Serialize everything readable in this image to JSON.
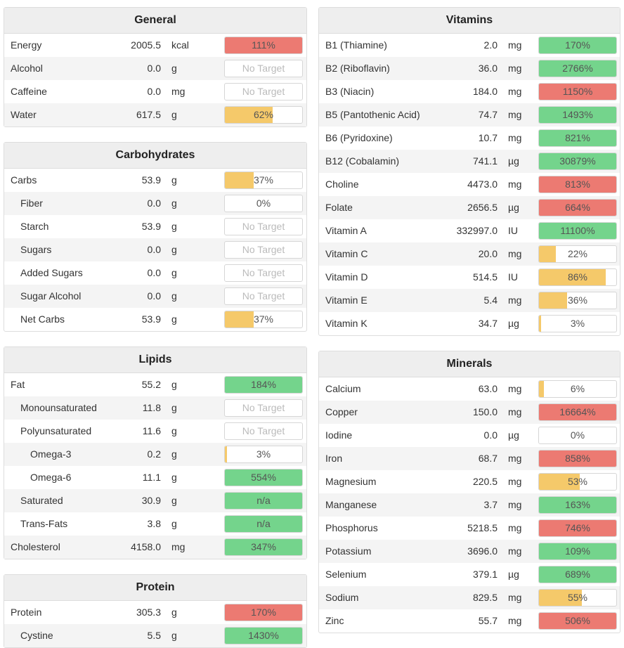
{
  "columns": [
    [
      {
        "title": "General",
        "rows": [
          {
            "name": "Energy",
            "amount": "2005.5",
            "unit": "kcal",
            "bar": {
              "value": 111,
              "label": "111%",
              "color": "#ec7a72"
            }
          },
          {
            "name": "Alcohol",
            "amount": "0.0",
            "unit": "g",
            "bar": {
              "label": "No Target"
            }
          },
          {
            "name": "Caffeine",
            "amount": "0.0",
            "unit": "mg",
            "bar": {
              "label": "No Target"
            }
          },
          {
            "name": "Water",
            "amount": "617.5",
            "unit": "g",
            "bar": {
              "value": 62,
              "label": "62%",
              "color": "#f5c96a"
            }
          }
        ]
      },
      {
        "title": "Carbohydrates",
        "rows": [
          {
            "name": "Carbs",
            "amount": "53.9",
            "unit": "g",
            "bar": {
              "value": 37,
              "label": "37%",
              "color": "#f5c96a"
            },
            "children": [
              {
                "name": "Fiber",
                "amount": "0.0",
                "unit": "g",
                "bar": {
                  "value": 0,
                  "label": "0%"
                }
              },
              {
                "name": "Starch",
                "amount": "53.9",
                "unit": "g",
                "bar": {
                  "label": "No Target"
                }
              },
              {
                "name": "Sugars",
                "amount": "0.0",
                "unit": "g",
                "bar": {
                  "label": "No Target"
                }
              },
              {
                "name": "Added Sugars",
                "amount": "0.0",
                "unit": "g",
                "bar": {
                  "label": "No Target"
                }
              },
              {
                "name": "Sugar Alcohol",
                "amount": "0.0",
                "unit": "g",
                "bar": {
                  "label": "No Target"
                }
              },
              {
                "name": "Net Carbs",
                "amount": "53.9",
                "unit": "g",
                "bar": {
                  "value": 37,
                  "label": "37%",
                  "color": "#f5c96a"
                }
              }
            ]
          }
        ]
      },
      {
        "title": "Lipids",
        "rows": [
          {
            "name": "Fat",
            "amount": "55.2",
            "unit": "g",
            "bar": {
              "value": 184,
              "label": "184%",
              "color": "#74d48c"
            },
            "children": [
              {
                "name": "Monounsaturated",
                "amount": "11.8",
                "unit": "g",
                "bar": {
                  "label": "No Target"
                }
              },
              {
                "name": "Polyunsaturated",
                "amount": "11.6",
                "unit": "g",
                "bar": {
                  "label": "No Target"
                },
                "children": [
                  {
                    "name": "Omega-3",
                    "amount": "0.2",
                    "unit": "g",
                    "bar": {
                      "value": 3,
                      "label": "3%",
                      "color": "#f5c96a"
                    }
                  },
                  {
                    "name": "Omega-6",
                    "amount": "11.1",
                    "unit": "g",
                    "bar": {
                      "value": 554,
                      "label": "554%",
                      "color": "#74d48c"
                    }
                  }
                ]
              },
              {
                "name": "Saturated",
                "amount": "30.9",
                "unit": "g",
                "bar": {
                  "label": "n/a",
                  "color": "#74d48c"
                }
              },
              {
                "name": "Trans-Fats",
                "amount": "3.8",
                "unit": "g",
                "bar": {
                  "label": "n/a",
                  "color": "#74d48c"
                }
              }
            ]
          },
          {
            "name": "Cholesterol",
            "amount": "4158.0",
            "unit": "mg",
            "bar": {
              "value": 347,
              "label": "347%",
              "color": "#74d48c"
            }
          }
        ]
      },
      {
        "title": "Protein",
        "rows": [
          {
            "name": "Protein",
            "amount": "305.3",
            "unit": "g",
            "bar": {
              "value": 170,
              "label": "170%",
              "color": "#ec7a72"
            },
            "children": [
              {
                "name": "Cystine",
                "amount": "5.5",
                "unit": "g",
                "bar": {
                  "value": 1430,
                  "label": "1430%",
                  "color": "#74d48c"
                }
              }
            ]
          }
        ]
      }
    ],
    [
      {
        "title": "Vitamins",
        "rows": [
          {
            "name": "B1 (Thiamine)",
            "amount": "2.0",
            "unit": "mg",
            "bar": {
              "value": 170,
              "label": "170%",
              "color": "#74d48c"
            }
          },
          {
            "name": "B2 (Riboflavin)",
            "amount": "36.0",
            "unit": "mg",
            "bar": {
              "value": 2766,
              "label": "2766%",
              "color": "#74d48c"
            }
          },
          {
            "name": "B3 (Niacin)",
            "amount": "184.0",
            "unit": "mg",
            "bar": {
              "value": 1150,
              "label": "1150%",
              "color": "#ec7a72"
            }
          },
          {
            "name": "B5 (Pantothenic Acid)",
            "amount": "74.7",
            "unit": "mg",
            "bar": {
              "value": 1493,
              "label": "1493%",
              "color": "#74d48c"
            }
          },
          {
            "name": "B6 (Pyridoxine)",
            "amount": "10.7",
            "unit": "mg",
            "bar": {
              "value": 821,
              "label": "821%",
              "color": "#74d48c"
            }
          },
          {
            "name": "B12 (Cobalamin)",
            "amount": "741.1",
            "unit": "µg",
            "bar": {
              "value": 30879,
              "label": "30879%",
              "color": "#74d48c"
            }
          },
          {
            "name": "Choline",
            "amount": "4473.0",
            "unit": "mg",
            "bar": {
              "value": 813,
              "label": "813%",
              "color": "#ec7a72"
            }
          },
          {
            "name": "Folate",
            "amount": "2656.5",
            "unit": "µg",
            "bar": {
              "value": 664,
              "label": "664%",
              "color": "#ec7a72"
            }
          },
          {
            "name": "Vitamin A",
            "amount": "332997.0",
            "unit": "IU",
            "bar": {
              "value": 11100,
              "label": "11100%",
              "color": "#74d48c"
            }
          },
          {
            "name": "Vitamin C",
            "amount": "20.0",
            "unit": "mg",
            "bar": {
              "value": 22,
              "label": "22%",
              "color": "#f5c96a"
            }
          },
          {
            "name": "Vitamin D",
            "amount": "514.5",
            "unit": "IU",
            "bar": {
              "value": 86,
              "label": "86%",
              "color": "#f5c96a"
            }
          },
          {
            "name": "Vitamin E",
            "amount": "5.4",
            "unit": "mg",
            "bar": {
              "value": 36,
              "label": "36%",
              "color": "#f5c96a"
            }
          },
          {
            "name": "Vitamin K",
            "amount": "34.7",
            "unit": "µg",
            "bar": {
              "value": 3,
              "label": "3%",
              "color": "#f5c96a"
            }
          }
        ]
      },
      {
        "title": "Minerals",
        "rows": [
          {
            "name": "Calcium",
            "amount": "63.0",
            "unit": "mg",
            "bar": {
              "value": 6,
              "label": "6%",
              "color": "#f5c96a"
            }
          },
          {
            "name": "Copper",
            "amount": "150.0",
            "unit": "mg",
            "bar": {
              "value": 16664,
              "label": "16664%",
              "color": "#ec7a72"
            }
          },
          {
            "name": "Iodine",
            "amount": "0.0",
            "unit": "µg",
            "bar": {
              "value": 0,
              "label": "0%"
            }
          },
          {
            "name": "Iron",
            "amount": "68.7",
            "unit": "mg",
            "bar": {
              "value": 858,
              "label": "858%",
              "color": "#ec7a72"
            }
          },
          {
            "name": "Magnesium",
            "amount": "220.5",
            "unit": "mg",
            "bar": {
              "value": 53,
              "label": "53%",
              "color": "#f5c96a"
            }
          },
          {
            "name": "Manganese",
            "amount": "3.7",
            "unit": "mg",
            "bar": {
              "value": 163,
              "label": "163%",
              "color": "#74d48c"
            }
          },
          {
            "name": "Phosphorus",
            "amount": "5218.5",
            "unit": "mg",
            "bar": {
              "value": 746,
              "label": "746%",
              "color": "#ec7a72"
            }
          },
          {
            "name": "Potassium",
            "amount": "3696.0",
            "unit": "mg",
            "bar": {
              "value": 109,
              "label": "109%",
              "color": "#74d48c"
            }
          },
          {
            "name": "Selenium",
            "amount": "379.1",
            "unit": "µg",
            "bar": {
              "value": 689,
              "label": "689%",
              "color": "#74d48c"
            }
          },
          {
            "name": "Sodium",
            "amount": "829.5",
            "unit": "mg",
            "bar": {
              "value": 55,
              "label": "55%",
              "color": "#f5c96a"
            }
          },
          {
            "name": "Zinc",
            "amount": "55.7",
            "unit": "mg",
            "bar": {
              "value": 506,
              "label": "506%",
              "color": "#ec7a72"
            }
          }
        ]
      }
    ]
  ]
}
